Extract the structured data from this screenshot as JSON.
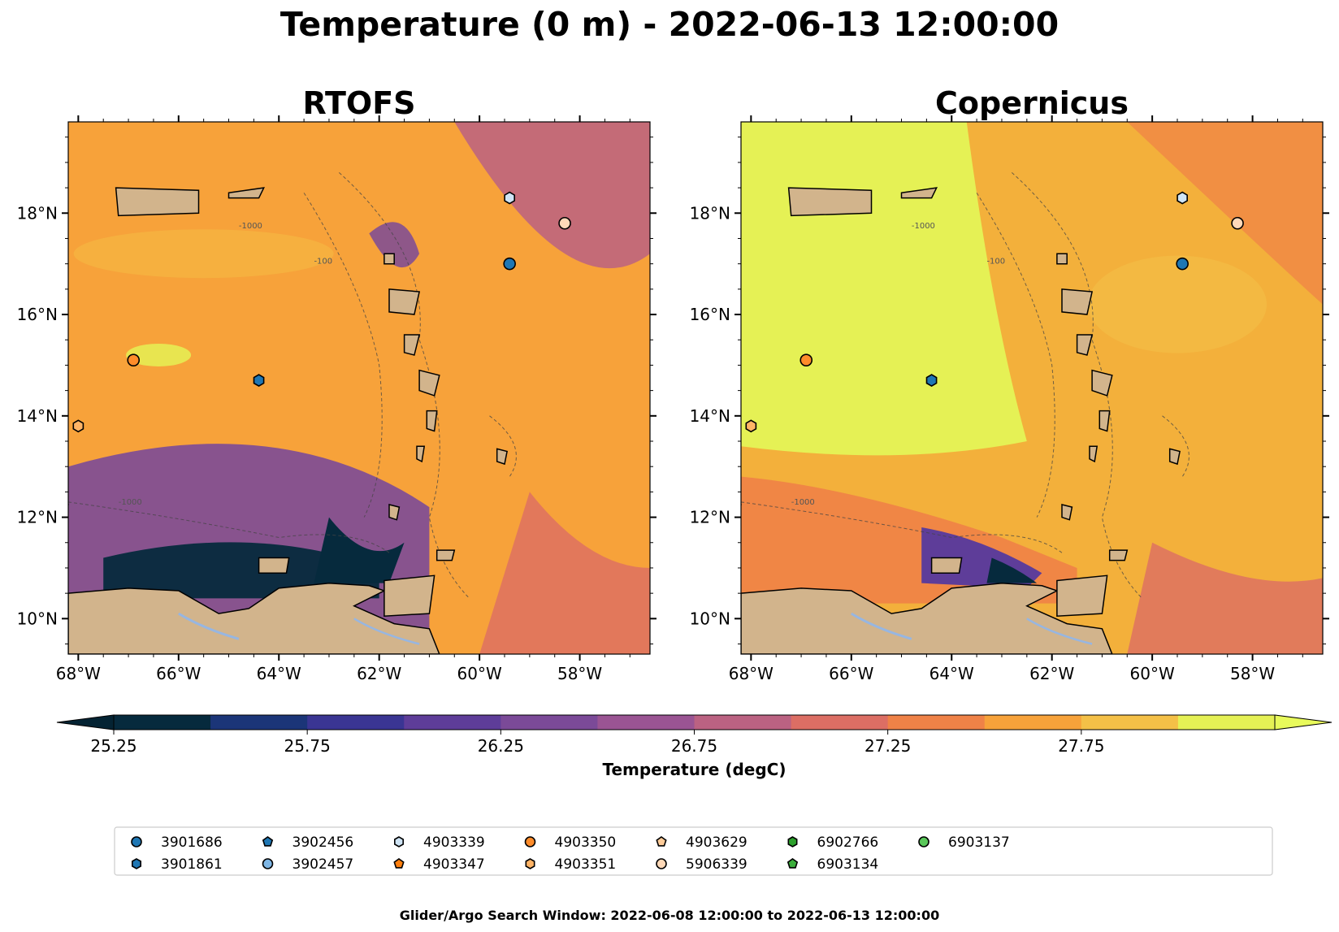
{
  "figure": {
    "title": "Temperature (0 m) - 2022-06-13 12:00:00",
    "footer": "Glider/Argo Search Window: 2022-06-08 12:00:00 to 2022-06-13 12:00:00"
  },
  "map_common": {
    "lon_ticks": [
      "68°W",
      "66°W",
      "64°W",
      "62°W",
      "60°W",
      "58°W"
    ],
    "lat_ticks": [
      "10°N",
      "12°N",
      "14°N",
      "16°N",
      "18°N"
    ],
    "lon_range": [
      -68.2,
      -56.6
    ],
    "lat_range": [
      9.3,
      19.8
    ],
    "bathymetry_contour_labels": [
      "-1000",
      "-100"
    ]
  },
  "panels": [
    {
      "id": "rtofs",
      "title": "RTOFS",
      "background": "#f7a23a"
    },
    {
      "id": "copernicus",
      "title": "Copernicus",
      "background": "#f3b03b"
    }
  ],
  "colorbar": {
    "label": "Temperature (degC)",
    "tick_labels": [
      "25.25",
      "25.75",
      "26.25",
      "26.75",
      "27.25",
      "27.75"
    ],
    "colors": [
      "#062a3d",
      "#1b3578",
      "#3a3593",
      "#5e3d99",
      "#7b4a98",
      "#9a5493",
      "#bb6282",
      "#dc6e64",
      "#ef8247",
      "#f7a23a",
      "#f4c047",
      "#e5f155"
    ],
    "under_color": "#042333",
    "over_color": "#e8fa5b"
  },
  "floats": [
    {
      "id": "3901686",
      "marker": "circle",
      "color": "#1f77b4",
      "lon": -59.4,
      "lat": 17.0
    },
    {
      "id": "3901861",
      "marker": "hexagon",
      "color": "#1f77b4",
      "lon": -64.4,
      "lat": 14.7
    },
    {
      "id": "3902456",
      "marker": "pentagon",
      "color": "#1f77b4"
    },
    {
      "id": "3902457",
      "marker": "circle",
      "color": "#7fb7e6"
    },
    {
      "id": "4903339",
      "marker": "hexagon",
      "color": "#cfe4f5",
      "lon": -59.4,
      "lat": 18.3
    },
    {
      "id": "4903347",
      "marker": "pentagon",
      "color": "#ff7f0e"
    },
    {
      "id": "4903350",
      "marker": "circle",
      "color": "#ff8c2a",
      "lon": -66.9,
      "lat": 15.1
    },
    {
      "id": "4903351",
      "marker": "hexagon",
      "color": "#ffb466",
      "lon": -68.0,
      "lat": 13.8
    },
    {
      "id": "4903629",
      "marker": "pentagon",
      "color": "#ffcc99"
    },
    {
      "id": "5906339",
      "marker": "circle",
      "color": "#ffd9b8",
      "lon": -58.3,
      "lat": 17.8
    },
    {
      "id": "6902766",
      "marker": "hexagon",
      "color": "#2ca02c"
    },
    {
      "id": "6903134",
      "marker": "pentagon",
      "color": "#3cae3c"
    },
    {
      "id": "6903137",
      "marker": "circle",
      "color": "#5ac85a"
    }
  ],
  "colors": {
    "land": "#d2b48c",
    "lake": "#97b6e1",
    "frame": "#000000"
  }
}
